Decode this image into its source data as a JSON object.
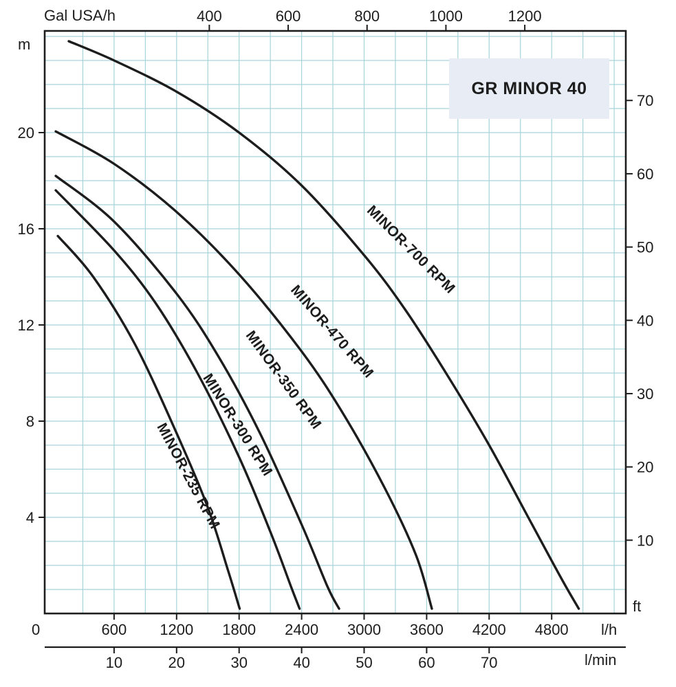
{
  "title_box": {
    "label": "GR MINOR 40"
  },
  "colors": {
    "grid": "#a6d4d9",
    "axis": "#1d1d1d",
    "curve": "#1d1d1d",
    "text": "#1d1d1d",
    "title_bg": "#e8edf5"
  },
  "axes": {
    "top": {
      "unit": "Gal USA/h",
      "ticks": [
        400,
        600,
        800,
        1000,
        1200
      ]
    },
    "left": {
      "unit": "m",
      "origin_label": "0",
      "ticks": [
        4,
        8,
        12,
        16,
        20
      ]
    },
    "right": {
      "unit": "ft",
      "ticks": [
        10,
        20,
        30,
        40,
        50,
        60,
        70
      ]
    },
    "bottom_lh": {
      "unit": "l/h",
      "ticks": [
        600,
        1200,
        1800,
        2400,
        3000,
        3600,
        4200,
        4800
      ]
    },
    "bottom_lmin": {
      "unit": "l/min",
      "ticks": [
        10,
        20,
        30,
        40,
        50,
        60,
        70
      ]
    }
  },
  "chart_data": {
    "type": "line",
    "title": "GR MINOR 40",
    "x_axis": {
      "units": [
        "l/h",
        "l/min",
        "Gal USA/h"
      ],
      "range_lh": [
        0,
        5500
      ]
    },
    "y_axis": {
      "units": [
        "m",
        "ft"
      ],
      "range_m": [
        0,
        24.2
      ]
    },
    "grid": {
      "x_step_lh": 300,
      "y_step_m": 1,
      "visible": true
    },
    "legend_position": "labels-along-curves",
    "series": [
      {
        "name": "MINOR-700 RPM",
        "points_lh_m": [
          [
            165,
            23.8
          ],
          [
            600,
            23.0
          ],
          [
            1200,
            21.7
          ],
          [
            1800,
            20.0
          ],
          [
            2400,
            17.8
          ],
          [
            3000,
            14.9
          ],
          [
            3400,
            12.6
          ],
          [
            3800,
            9.9
          ],
          [
            4200,
            7.0
          ],
          [
            4600,
            3.8
          ],
          [
            4900,
            1.4
          ],
          [
            5060,
            0.2
          ]
        ]
      },
      {
        "name": "MINOR-470 RPM",
        "points_lh_m": [
          [
            40,
            20.05
          ],
          [
            600,
            18.7
          ],
          [
            1200,
            16.7
          ],
          [
            1800,
            14.1
          ],
          [
            2400,
            10.9
          ],
          [
            2800,
            8.3
          ],
          [
            3200,
            5.2
          ],
          [
            3500,
            2.4
          ],
          [
            3650,
            0.2
          ]
        ]
      },
      {
        "name": "MINOR-350 RPM",
        "points_lh_m": [
          [
            40,
            18.2
          ],
          [
            600,
            16.3
          ],
          [
            1200,
            13.3
          ],
          [
            1600,
            10.7
          ],
          [
            2000,
            7.5
          ],
          [
            2400,
            3.7
          ],
          [
            2650,
            1.1
          ],
          [
            2760,
            0.2
          ]
        ]
      },
      {
        "name": "MINOR-300 RPM",
        "points_lh_m": [
          [
            40,
            17.6
          ],
          [
            600,
            15.1
          ],
          [
            1000,
            12.9
          ],
          [
            1400,
            10.0
          ],
          [
            1800,
            6.5
          ],
          [
            2100,
            3.4
          ],
          [
            2300,
            1.1
          ],
          [
            2380,
            0.2
          ]
        ]
      },
      {
        "name": "MINOR-235 RPM",
        "points_lh_m": [
          [
            60,
            15.7
          ],
          [
            400,
            14.0
          ],
          [
            800,
            11.2
          ],
          [
            1200,
            7.5
          ],
          [
            1500,
            4.4
          ],
          [
            1700,
            1.7
          ],
          [
            1805,
            0.2
          ]
        ]
      }
    ]
  }
}
